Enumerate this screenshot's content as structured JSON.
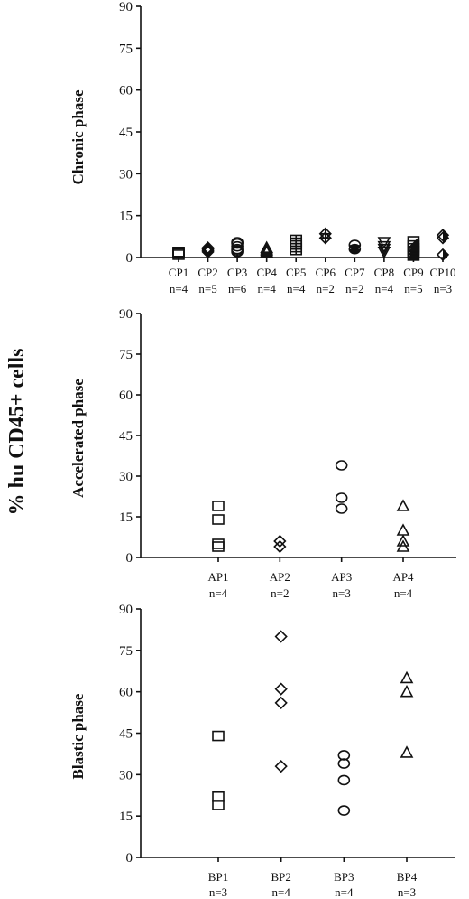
{
  "figure": {
    "ylabel": "% hu CD45+ cells"
  },
  "chart_data": [
    {
      "type": "scatter",
      "panel_label": "Chronic phase",
      "ylim": [
        0,
        90
      ],
      "yticks": [
        0,
        15,
        30,
        45,
        60,
        75,
        90
      ],
      "grid": false,
      "categories": [
        {
          "name": "CP1",
          "n": "n=4",
          "marker": "square",
          "values": [
            1,
            2,
            1.5,
            2
          ]
        },
        {
          "name": "CP2",
          "n": "n=5",
          "marker": "diamond",
          "values": [
            2,
            3,
            3.5,
            2.5,
            3
          ]
        },
        {
          "name": "CP3",
          "n": "n=6",
          "marker": "circle",
          "values": [
            2,
            3,
            4,
            5,
            2.5,
            5.5
          ]
        },
        {
          "name": "CP4",
          "n": "n=4",
          "marker": "triangle",
          "values": [
            2,
            3,
            3.5,
            2.5
          ]
        },
        {
          "name": "CP5",
          "n": "n=4",
          "marker": "grid-square",
          "values": [
            3,
            4,
            5,
            6
          ]
        },
        {
          "name": "CP6",
          "n": "n=2",
          "marker": "grid-diamond",
          "values": [
            7,
            8.5
          ]
        },
        {
          "name": "CP7",
          "n": "n=2",
          "marker": "half-circle",
          "values": [
            3,
            4.5
          ]
        },
        {
          "name": "CP8",
          "n": "n=4",
          "marker": "down-triangle",
          "values": [
            2,
            3,
            4,
            5.5
          ]
        },
        {
          "name": "CP9",
          "n": "n=5",
          "marker": "half-square",
          "values": [
            1,
            2,
            3,
            4,
            5.5
          ]
        },
        {
          "name": "CP10",
          "n": "n=3",
          "marker": "half-diamond",
          "values": [
            1,
            7,
            8
          ]
        }
      ]
    },
    {
      "type": "scatter",
      "panel_label": "Accelerated phase",
      "ylim": [
        0,
        90
      ],
      "yticks": [
        0,
        15,
        30,
        45,
        60,
        75,
        90
      ],
      "grid": false,
      "categories": [
        {
          "name": "AP1",
          "n": "n=4",
          "marker": "square",
          "values": [
            19,
            14,
            5,
            4
          ]
        },
        {
          "name": "AP2",
          "n": "n=2",
          "marker": "diamond",
          "values": [
            6,
            4
          ]
        },
        {
          "name": "AP3",
          "n": "n=3",
          "marker": "circle",
          "values": [
            34,
            22,
            18
          ]
        },
        {
          "name": "AP4",
          "n": "n=4",
          "marker": "triangle",
          "values": [
            19,
            10,
            6,
            4
          ]
        }
      ]
    },
    {
      "type": "scatter",
      "panel_label": "Blastic phase",
      "ylim": [
        0,
        90
      ],
      "yticks": [
        0,
        15,
        30,
        45,
        60,
        75,
        90
      ],
      "grid": false,
      "categories": [
        {
          "name": "BP1",
          "n": "n=3",
          "marker": "square",
          "values": [
            44,
            22,
            19
          ]
        },
        {
          "name": "BP2",
          "n": "n=4",
          "marker": "diamond",
          "values": [
            80,
            61,
            56,
            33
          ]
        },
        {
          "name": "BP3",
          "n": "n=4",
          "marker": "circle",
          "values": [
            37,
            34,
            28,
            17
          ]
        },
        {
          "name": "BP4",
          "n": "n=3",
          "marker": "triangle",
          "values": [
            65,
            60,
            38
          ]
        }
      ]
    }
  ]
}
